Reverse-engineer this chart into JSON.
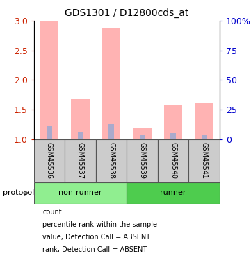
{
  "title": "GDS1301 / D12800cds_at",
  "samples": [
    "GSM45536",
    "GSM45537",
    "GSM45538",
    "GSM45539",
    "GSM45540",
    "GSM45541"
  ],
  "bar_tops": [
    3.0,
    1.67,
    2.87,
    1.2,
    1.58,
    1.6
  ],
  "rank_tops": [
    1.22,
    1.12,
    1.25,
    1.07,
    1.1,
    1.08
  ],
  "ylim": [
    1.0,
    3.0
  ],
  "yticks_left": [
    1.0,
    1.5,
    2.0,
    2.5,
    3.0
  ],
  "yticks_right": [
    0,
    25,
    50,
    75,
    100
  ],
  "bar_color": "#FFB3B3",
  "rank_color": "#AAAACC",
  "sample_bg": "#CCCCCC",
  "group_color_nonrunner": "#90EE90",
  "group_color_runner": "#4ECC4E",
  "left_tick_color": "#CC2200",
  "right_tick_color": "#0000CC",
  "legend_colors": [
    "#CC0000",
    "#0000CC",
    "#FFB3B3",
    "#AAAACC"
  ],
  "legend_labels": [
    "count",
    "percentile rank within the sample",
    "value, Detection Call = ABSENT",
    "rank, Detection Call = ABSENT"
  ],
  "nonrunner_samples": 3,
  "runner_samples": 3
}
